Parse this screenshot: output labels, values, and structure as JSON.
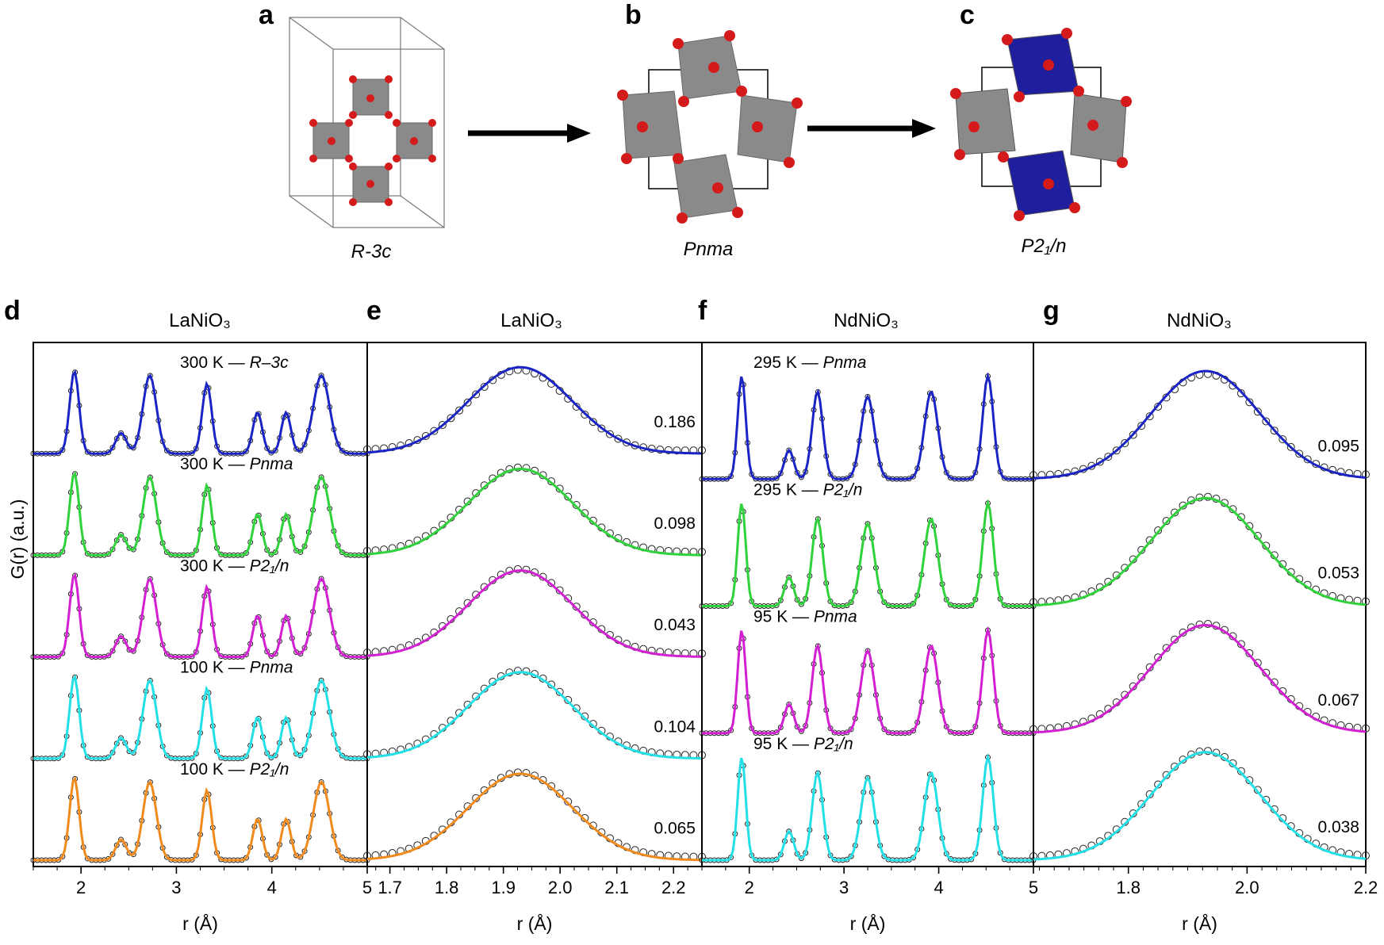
{
  "structures": {
    "a": {
      "letter": "a",
      "space_group": "R-3c"
    },
    "b": {
      "letter": "b",
      "space_group": "Pnma"
    },
    "c": {
      "letter": "c",
      "space_group": "P2₁/n"
    }
  },
  "colors": {
    "blue": "#1a23c4",
    "green": "#2fd23a",
    "magenta": "#d21fd2",
    "cyan": "#22e0e6",
    "orange": "#f08a1c",
    "octahedron_grey": "#8a8a8a",
    "octahedron_blue": "#1f1f9e",
    "oxygen_red": "#d41a1a"
  },
  "y_axis_label": "G(r) (a.u.)",
  "chart_data": [
    {
      "panel": "d",
      "type": "line",
      "title": "LaNiO₃",
      "xlabel": "r (Å)",
      "ylabel": "G(r) (a.u.)",
      "xlim": [
        1.5,
        5.0
      ],
      "xticks": [
        "2",
        "3",
        "4",
        "5"
      ],
      "series": [
        {
          "name": "300 K — R–3c",
          "temperature": "300 K — ",
          "space_group": "R–3c",
          "color": "#1a23c4"
        },
        {
          "name": "300 K — Pnma",
          "temperature": "300 K — ",
          "space_group": "Pnma",
          "color": "#2fd23a"
        },
        {
          "name": "300 K — P2₁/n",
          "temperature": "300 K — ",
          "space_group": "P2₁/n",
          "color": "#d21fd2"
        },
        {
          "name": "100 K — Pnma",
          "temperature": "100 K — ",
          "space_group": "Pnma",
          "color": "#22e0e6"
        },
        {
          "name": "100 K — P2₁/n",
          "temperature": "100 K — ",
          "space_group": "P2₁/n",
          "color": "#f08a1c"
        }
      ]
    },
    {
      "panel": "e",
      "type": "line",
      "title": "LaNiO₃",
      "xlabel": "r (Å)",
      "xlim": [
        1.66,
        2.25
      ],
      "xticks": [
        "1.7",
        "1.8",
        "1.9",
        "2.0",
        "2.1",
        "2.2"
      ],
      "series": [
        {
          "color": "#1a23c4",
          "rw": "0.186"
        },
        {
          "color": "#2fd23a",
          "rw": "0.098"
        },
        {
          "color": "#d21fd2",
          "rw": "0.043"
        },
        {
          "color": "#22e0e6",
          "rw": "0.104"
        },
        {
          "color": "#f08a1c",
          "rw": "0.065"
        }
      ]
    },
    {
      "panel": "f",
      "type": "line",
      "title": "NdNiO₃",
      "xlabel": "r (Å)",
      "xlim": [
        1.5,
        5.0
      ],
      "xticks": [
        "2",
        "3",
        "4",
        "5"
      ],
      "series": [
        {
          "name": "295 K — Pnma",
          "temperature": "295 K — ",
          "space_group": "Pnma",
          "color": "#1a23c4"
        },
        {
          "name": "295 K — P2₁/n",
          "temperature": "295 K — ",
          "space_group": "P2₁/n",
          "color": "#2fd23a"
        },
        {
          "name": "95 K — Pnma",
          "temperature": "95 K — ",
          "space_group": "Pnma",
          "color": "#d21fd2"
        },
        {
          "name": "95 K — P2₁/n",
          "temperature": "95 K — ",
          "space_group": "P2₁/n",
          "color": "#22e0e6"
        }
      ]
    },
    {
      "panel": "g",
      "type": "line",
      "title": "NdNiO₃",
      "xlabel": "r (Å)",
      "xlim": [
        1.64,
        2.2
      ],
      "xticks": [
        "1.8",
        "2.0",
        "2.2"
      ],
      "series": [
        {
          "color": "#1a23c4",
          "rw": "0.095"
        },
        {
          "color": "#2fd23a",
          "rw": "0.053"
        },
        {
          "color": "#d21fd2",
          "rw": "0.067"
        },
        {
          "color": "#22e0e6",
          "rw": "0.038"
        }
      ]
    }
  ]
}
